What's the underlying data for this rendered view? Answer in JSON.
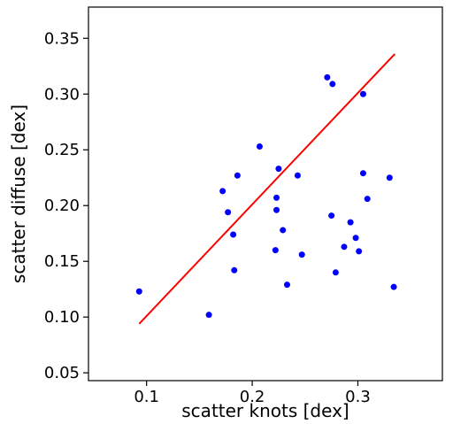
{
  "chart_data": {
    "type": "scatter",
    "xlabel": "scatter knots [dex]",
    "ylabel": "scatter diffuse [dex]",
    "xlim": [
      0.045,
      0.38
    ],
    "ylim": [
      0.043,
      0.378
    ],
    "x_ticks": [
      {
        "value": 0.1,
        "label": "0.1"
      },
      {
        "value": 0.2,
        "label": "0.2"
      },
      {
        "value": 0.3,
        "label": "0.3"
      }
    ],
    "y_ticks": [
      {
        "value": 0.05,
        "label": "0.05"
      },
      {
        "value": 0.1,
        "label": "0.10"
      },
      {
        "value": 0.15,
        "label": "0.15"
      },
      {
        "value": 0.2,
        "label": "0.20"
      },
      {
        "value": 0.25,
        "label": "0.25"
      },
      {
        "value": 0.3,
        "label": "0.30"
      },
      {
        "value": 0.35,
        "label": "0.35"
      }
    ],
    "grid": false,
    "series": [
      {
        "type": "scatter",
        "color": "#0000ff",
        "points": [
          {
            "x": 0.093,
            "y": 0.123
          },
          {
            "x": 0.159,
            "y": 0.102
          },
          {
            "x": 0.172,
            "y": 0.213
          },
          {
            "x": 0.177,
            "y": 0.194
          },
          {
            "x": 0.182,
            "y": 0.174
          },
          {
            "x": 0.183,
            "y": 0.142
          },
          {
            "x": 0.186,
            "y": 0.227
          },
          {
            "x": 0.207,
            "y": 0.253
          },
          {
            "x": 0.222,
            "y": 0.16
          },
          {
            "x": 0.223,
            "y": 0.207
          },
          {
            "x": 0.223,
            "y": 0.196
          },
          {
            "x": 0.225,
            "y": 0.233
          },
          {
            "x": 0.229,
            "y": 0.178
          },
          {
            "x": 0.233,
            "y": 0.129
          },
          {
            "x": 0.243,
            "y": 0.227
          },
          {
            "x": 0.247,
            "y": 0.156
          },
          {
            "x": 0.271,
            "y": 0.315
          },
          {
            "x": 0.276,
            "y": 0.309
          },
          {
            "x": 0.275,
            "y": 0.191
          },
          {
            "x": 0.279,
            "y": 0.14
          },
          {
            "x": 0.287,
            "y": 0.163
          },
          {
            "x": 0.293,
            "y": 0.185
          },
          {
            "x": 0.298,
            "y": 0.171
          },
          {
            "x": 0.301,
            "y": 0.159
          },
          {
            "x": 0.305,
            "y": 0.3
          },
          {
            "x": 0.305,
            "y": 0.229
          },
          {
            "x": 0.309,
            "y": 0.206
          },
          {
            "x": 0.33,
            "y": 0.225
          },
          {
            "x": 0.334,
            "y": 0.127
          }
        ]
      },
      {
        "type": "line",
        "color": "#ff0000",
        "points": [
          {
            "x": 0.093,
            "y": 0.094
          },
          {
            "x": 0.335,
            "y": 0.336
          }
        ]
      }
    ]
  }
}
